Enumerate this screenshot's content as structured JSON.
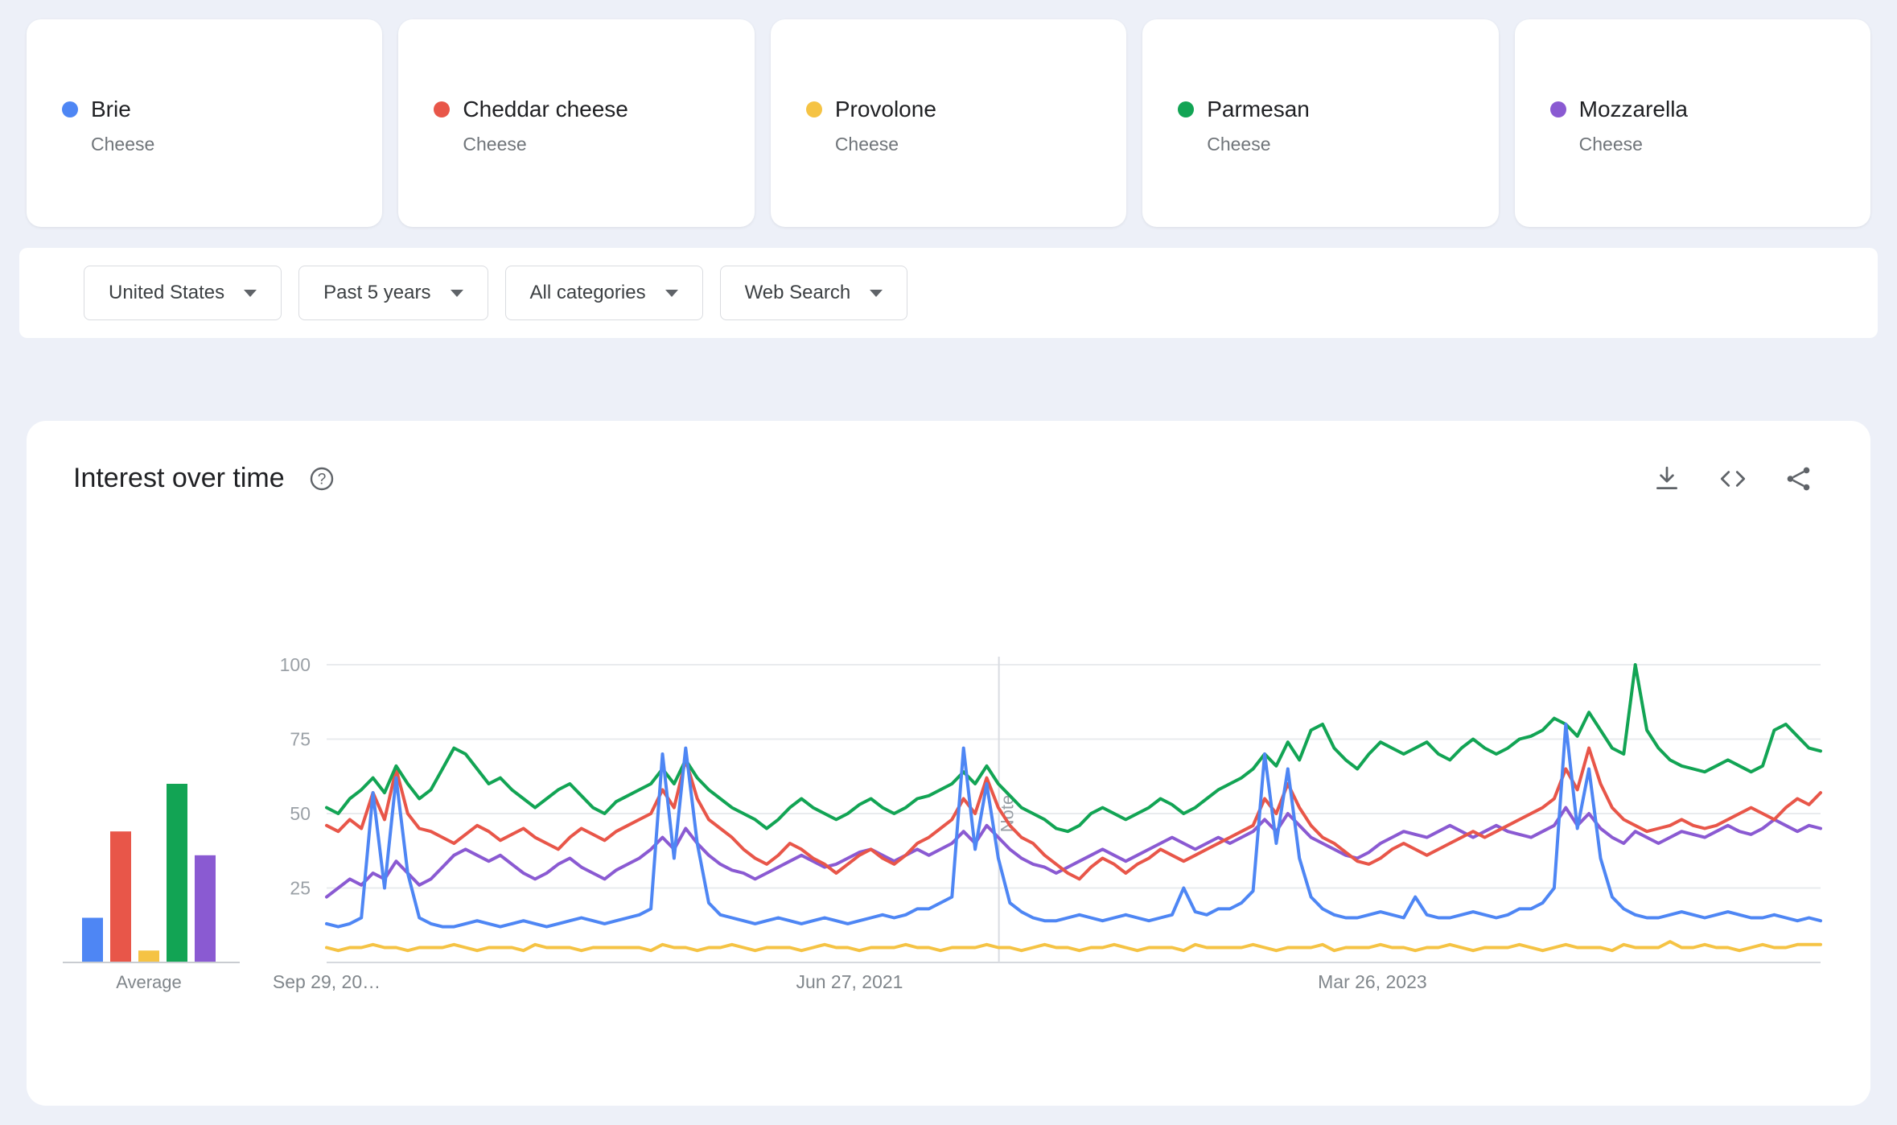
{
  "page": {
    "background_color": "#edf0f8",
    "card_color": "#ffffff"
  },
  "terms": [
    {
      "label": "Brie",
      "subtitle": "Cheese",
      "color": "#4e86f4"
    },
    {
      "label": "Cheddar cheese",
      "subtitle": "Cheese",
      "color": "#e85649"
    },
    {
      "label": "Provolone",
      "subtitle": "Cheese",
      "color": "#f5c344"
    },
    {
      "label": "Parmesan",
      "subtitle": "Cheese",
      "color": "#12a454"
    },
    {
      "label": "Mozzarella",
      "subtitle": "Cheese",
      "color": "#8a5ad2"
    }
  ],
  "filters": {
    "region": "United States",
    "time": "Past 5 years",
    "category": "All categories",
    "search_type": "Web Search"
  },
  "panel": {
    "title": "Interest over time",
    "icons": [
      "help-icon",
      "download-icon",
      "embed-icon",
      "share-icon"
    ]
  },
  "chart_data": {
    "type": "line",
    "title": "Interest over time",
    "ylim": [
      0,
      100
    ],
    "yticks": [
      25,
      50,
      75,
      100
    ],
    "grid": true,
    "xticks": [
      "Sep 29, 20…",
      "Jun 27, 2021",
      "Mar 26, 2023"
    ],
    "xtick_positions": [
      0.0,
      0.35,
      0.7
    ],
    "note_marker": {
      "label": "Note",
      "position": 0.45
    },
    "average": {
      "label": "Average",
      "values": [
        15,
        44,
        4,
        60,
        36
      ]
    },
    "series": [
      {
        "name": "Provolone",
        "color": "#f5c344",
        "values": [
          5,
          4,
          5,
          5,
          6,
          5,
          5,
          4,
          5,
          5,
          5,
          6,
          5,
          4,
          5,
          5,
          5,
          4,
          6,
          5,
          5,
          5,
          4,
          5,
          5,
          5,
          5,
          5,
          4,
          6,
          5,
          5,
          4,
          5,
          5,
          6,
          5,
          4,
          5,
          5,
          5,
          4,
          5,
          6,
          5,
          5,
          4,
          5,
          5,
          5,
          6,
          5,
          5,
          4,
          5,
          5,
          5,
          6,
          5,
          5,
          4,
          5,
          6,
          5,
          5,
          4,
          5,
          5,
          6,
          5,
          4,
          5,
          5,
          5,
          4,
          6,
          5,
          5,
          5,
          5,
          6,
          5,
          4,
          5,
          5,
          5,
          6,
          4,
          5,
          5,
          5,
          6,
          5,
          5,
          4,
          5,
          5,
          6,
          5,
          4,
          5,
          5,
          5,
          6,
          5,
          4,
          5,
          6,
          5,
          5,
          5,
          4,
          6,
          5,
          5,
          5,
          7,
          5,
          5,
          6,
          5,
          5,
          4,
          5,
          6,
          5,
          5,
          6,
          6,
          6
        ]
      },
      {
        "name": "Mozzarella",
        "color": "#8a5ad2",
        "values": [
          22,
          25,
          28,
          26,
          30,
          28,
          34,
          30,
          26,
          28,
          32,
          36,
          38,
          36,
          34,
          36,
          33,
          30,
          28,
          30,
          33,
          35,
          32,
          30,
          28,
          31,
          33,
          35,
          38,
          42,
          38,
          45,
          40,
          36,
          33,
          31,
          30,
          28,
          30,
          32,
          34,
          36,
          34,
          32,
          33,
          35,
          37,
          38,
          36,
          34,
          36,
          38,
          36,
          38,
          40,
          44,
          40,
          46,
          42,
          38,
          35,
          33,
          32,
          30,
          32,
          34,
          36,
          38,
          36,
          34,
          36,
          38,
          40,
          42,
          40,
          38,
          40,
          42,
          40,
          42,
          44,
          48,
          44,
          50,
          46,
          42,
          40,
          38,
          36,
          35,
          37,
          40,
          42,
          44,
          43,
          42,
          44,
          46,
          44,
          42,
          44,
          46,
          44,
          43,
          42,
          44,
          46,
          52,
          46,
          50,
          45,
          42,
          40,
          44,
          42,
          40,
          42,
          44,
          43,
          42,
          44,
          46,
          44,
          43,
          45,
          48,
          46,
          44,
          46,
          45
        ]
      },
      {
        "name": "Cheddar cheese",
        "color": "#e85649",
        "values": [
          46,
          44,
          48,
          45,
          57,
          48,
          65,
          50,
          45,
          44,
          42,
          40,
          43,
          46,
          44,
          41,
          43,
          45,
          42,
          40,
          38,
          42,
          45,
          43,
          41,
          44,
          46,
          48,
          50,
          58,
          52,
          68,
          55,
          48,
          45,
          42,
          38,
          35,
          33,
          36,
          40,
          38,
          35,
          33,
          30,
          33,
          36,
          38,
          35,
          33,
          36,
          40,
          42,
          45,
          48,
          55,
          50,
          62,
          52,
          46,
          42,
          40,
          36,
          33,
          30,
          28,
          32,
          35,
          33,
          30,
          33,
          35,
          38,
          36,
          34,
          36,
          38,
          40,
          42,
          44,
          46,
          55,
          50,
          60,
          52,
          46,
          42,
          40,
          37,
          34,
          33,
          35,
          38,
          40,
          38,
          36,
          38,
          40,
          42,
          44,
          42,
          44,
          46,
          48,
          50,
          52,
          55,
          65,
          58,
          72,
          60,
          52,
          48,
          46,
          44,
          45,
          46,
          48,
          46,
          45,
          46,
          48,
          50,
          52,
          50,
          48,
          52,
          55,
          53,
          57
        ]
      },
      {
        "name": "Parmesan",
        "color": "#12a454",
        "values": [
          52,
          50,
          55,
          58,
          62,
          57,
          66,
          60,
          55,
          58,
          65,
          72,
          70,
          65,
          60,
          62,
          58,
          55,
          52,
          55,
          58,
          60,
          56,
          52,
          50,
          54,
          56,
          58,
          60,
          65,
          60,
          68,
          62,
          58,
          55,
          52,
          50,
          48,
          45,
          48,
          52,
          55,
          52,
          50,
          48,
          50,
          53,
          55,
          52,
          50,
          52,
          55,
          56,
          58,
          60,
          64,
          60,
          66,
          60,
          56,
          52,
          50,
          48,
          45,
          44,
          46,
          50,
          52,
          50,
          48,
          50,
          52,
          55,
          53,
          50,
          52,
          55,
          58,
          60,
          62,
          65,
          70,
          66,
          74,
          68,
          78,
          80,
          72,
          68,
          65,
          70,
          74,
          72,
          70,
          72,
          74,
          70,
          68,
          72,
          75,
          72,
          70,
          72,
          75,
          76,
          78,
          82,
          80,
          76,
          84,
          78,
          72,
          70,
          100,
          78,
          72,
          68,
          66,
          65,
          64,
          66,
          68,
          66,
          64,
          66,
          78,
          80,
          76,
          72,
          71
        ]
      },
      {
        "name": "Brie",
        "color": "#4e86f4",
        "values": [
          13,
          12,
          13,
          15,
          57,
          25,
          62,
          30,
          15,
          13,
          12,
          12,
          13,
          14,
          13,
          12,
          13,
          14,
          13,
          12,
          13,
          14,
          15,
          14,
          13,
          14,
          15,
          16,
          18,
          70,
          35,
          72,
          40,
          20,
          16,
          15,
          14,
          13,
          14,
          15,
          14,
          13,
          14,
          15,
          14,
          13,
          14,
          15,
          16,
          15,
          16,
          18,
          18,
          20,
          22,
          72,
          38,
          60,
          35,
          20,
          17,
          15,
          14,
          14,
          15,
          16,
          15,
          14,
          15,
          16,
          15,
          14,
          15,
          16,
          25,
          17,
          16,
          18,
          18,
          20,
          24,
          70,
          40,
          65,
          35,
          22,
          18,
          16,
          15,
          15,
          16,
          17,
          16,
          15,
          22,
          16,
          15,
          15,
          16,
          17,
          16,
          15,
          16,
          18,
          18,
          20,
          25,
          80,
          45,
          65,
          35,
          22,
          18,
          16,
          15,
          15,
          16,
          17,
          16,
          15,
          16,
          17,
          16,
          15,
          15,
          16,
          15,
          14,
          15,
          14
        ]
      }
    ],
    "bar_order_terms": [
      "Brie",
      "Cheddar cheese",
      "Provolone",
      "Parmesan",
      "Mozzarella"
    ]
  }
}
